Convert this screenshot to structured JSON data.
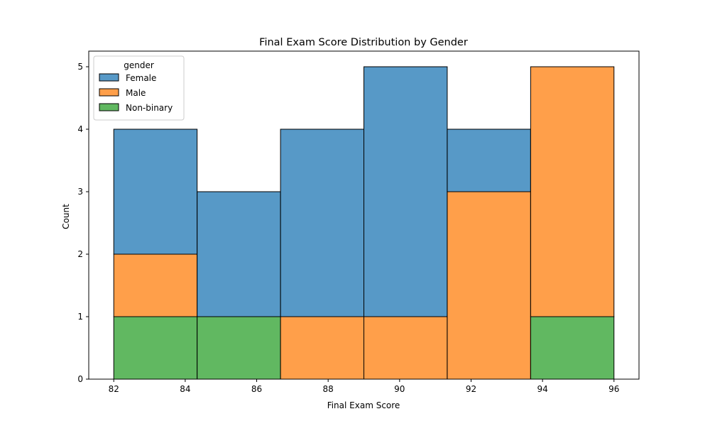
{
  "chart_data": {
    "type": "bar",
    "stacked": true,
    "title": "Final Exam Score Distribution by Gender",
    "xlabel": "Final Exam Score",
    "ylabel": "Count",
    "xlim": [
      81.3,
      96.7
    ],
    "ylim": [
      0,
      5.25
    ],
    "xticks": [
      82,
      84,
      86,
      88,
      90,
      92,
      94,
      96
    ],
    "yticks": [
      0,
      1,
      2,
      3,
      4,
      5
    ],
    "bin_edges": [
      82,
      84.333,
      86.667,
      89,
      91.333,
      93.667,
      96
    ],
    "series": [
      {
        "name": "Non-binary",
        "color": "#2ca02c",
        "values": [
          1,
          1,
          0,
          0,
          0,
          1
        ]
      },
      {
        "name": "Male",
        "color": "#ff7f0e",
        "values": [
          1,
          0,
          1,
          1,
          3,
          4
        ]
      },
      {
        "name": "Female",
        "color": "#1f77b4",
        "values": [
          2,
          2,
          3,
          4,
          1,
          0
        ]
      }
    ],
    "legend": {
      "title": "gender",
      "position": "top-left",
      "entries": [
        "Female",
        "Male",
        "Non-binary"
      ]
    },
    "grid": false
  }
}
